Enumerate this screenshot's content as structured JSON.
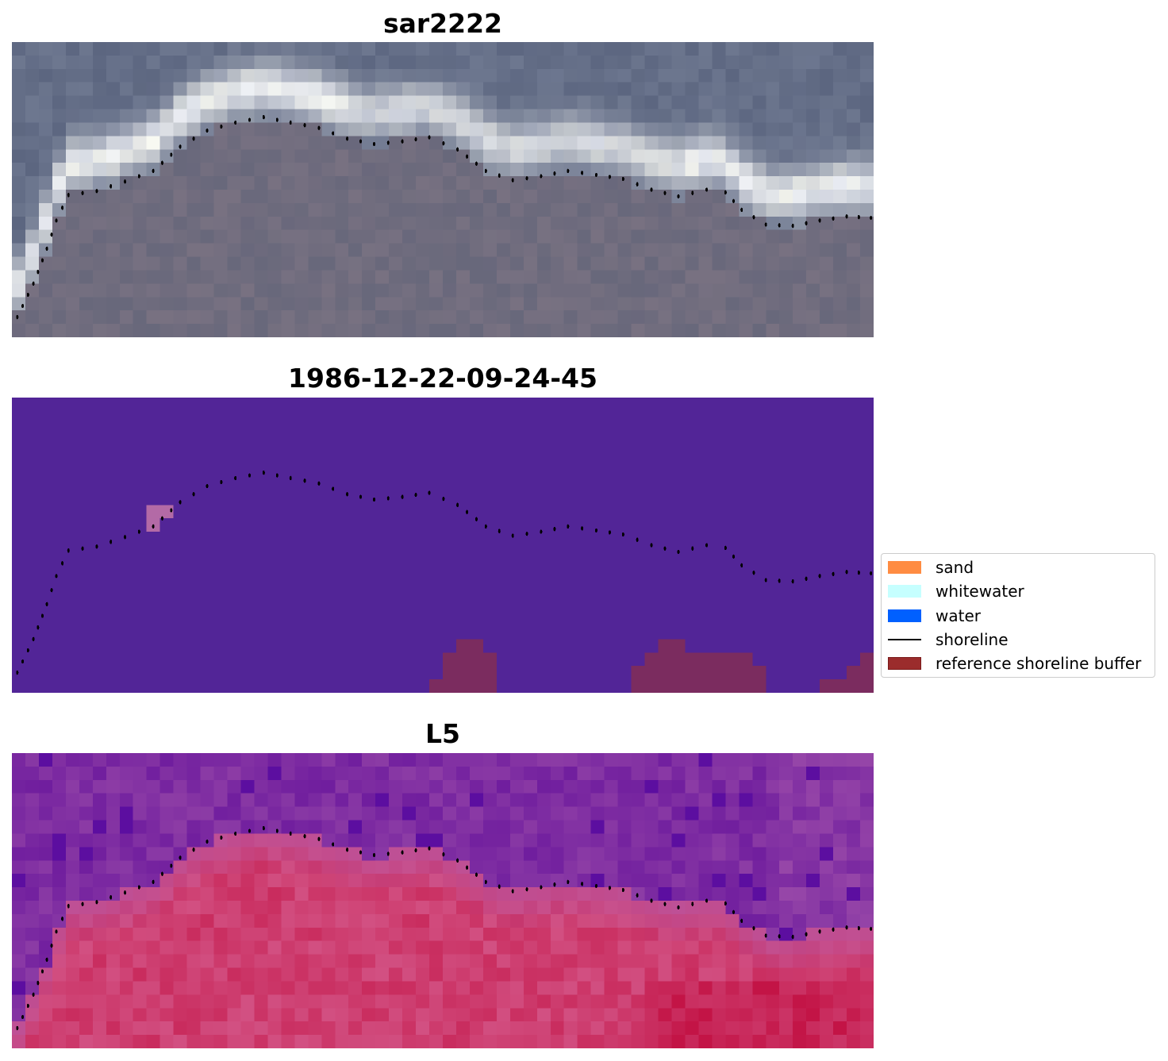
{
  "panels": [
    {
      "title": "sar2222",
      "kind": "rgb"
    },
    {
      "title": "1986-12-22-09-24-45",
      "kind": "classified"
    },
    {
      "title": "L5",
      "kind": "index"
    }
  ],
  "legend": {
    "items": [
      {
        "label": "sand",
        "type": "patch",
        "color": "#ff8c42"
      },
      {
        "label": "whitewater",
        "type": "patch",
        "color": "#c6ffff"
      },
      {
        "label": "water",
        "type": "patch",
        "color": "#0060ff"
      },
      {
        "label": "shoreline",
        "type": "line",
        "color": "#000000"
      },
      {
        "label": "reference shoreline buffer",
        "type": "patch",
        "color": "#9b2c2c",
        "edge": "#7a1a1a"
      }
    ]
  },
  "colors": {
    "classified_background": "#522597",
    "classified_buffer": "#7b2c5f",
    "classified_sand_patch": "#b36aa6",
    "shoreline_dots": "#000000"
  }
}
